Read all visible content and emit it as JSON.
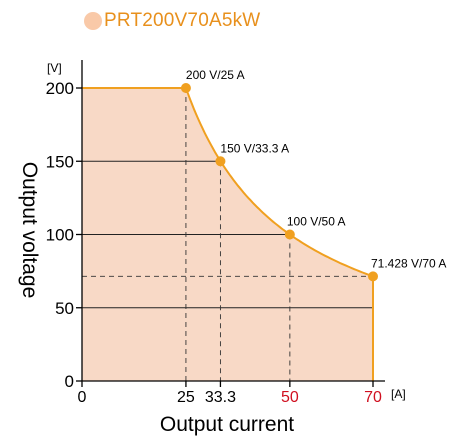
{
  "chart_data": {
    "type": "line",
    "title": "",
    "legend": {
      "label": "PRT200V70A5kW",
      "position": "top-left"
    },
    "xlabel": "Output current",
    "ylabel": "Output voltage",
    "x_unit": "[A]",
    "y_unit": "[V]",
    "xlim": [
      0,
      70
    ],
    "ylim": [
      0,
      220
    ],
    "x_ticks": [
      {
        "value": 0,
        "label": "0",
        "highlight": false
      },
      {
        "value": 25,
        "label": "25",
        "highlight": false
      },
      {
        "value": 33.3,
        "label": "33.3",
        "highlight": false
      },
      {
        "value": 50,
        "label": "50",
        "highlight": true
      },
      {
        "value": 70,
        "label": "70",
        "highlight": true
      }
    ],
    "y_ticks": [
      {
        "value": 0,
        "label": "0"
      },
      {
        "value": 50,
        "label": "50"
      },
      {
        "value": 100,
        "label": "100"
      },
      {
        "value": 150,
        "label": "150"
      },
      {
        "value": 200,
        "label": "200"
      }
    ],
    "series": [
      {
        "name": "PRT200V70A5kW",
        "x": [
          0,
          25,
          30,
          33.3,
          40,
          50,
          60,
          70,
          70
        ],
        "y": [
          200,
          200,
          166.7,
          150,
          125,
          100,
          83.3,
          71.428,
          0
        ]
      }
    ],
    "points": [
      {
        "x": 25,
        "y": 200,
        "label": "200 V/25 A"
      },
      {
        "x": 33.3,
        "y": 150,
        "label": "150 V/33.3 A"
      },
      {
        "x": 50,
        "y": 100,
        "label": "100 V/50 A"
      },
      {
        "x": 70,
        "y": 71.428,
        "label": "71.428 V/70 A"
      }
    ],
    "colors": {
      "line": "#f0a020",
      "fill": "#f8d9c6",
      "point": "#f0a020",
      "legend_dot": "#f9c9a8",
      "legend_text": "#e8901c",
      "highlight_tick": "#d01020",
      "axis": "#000000"
    }
  }
}
